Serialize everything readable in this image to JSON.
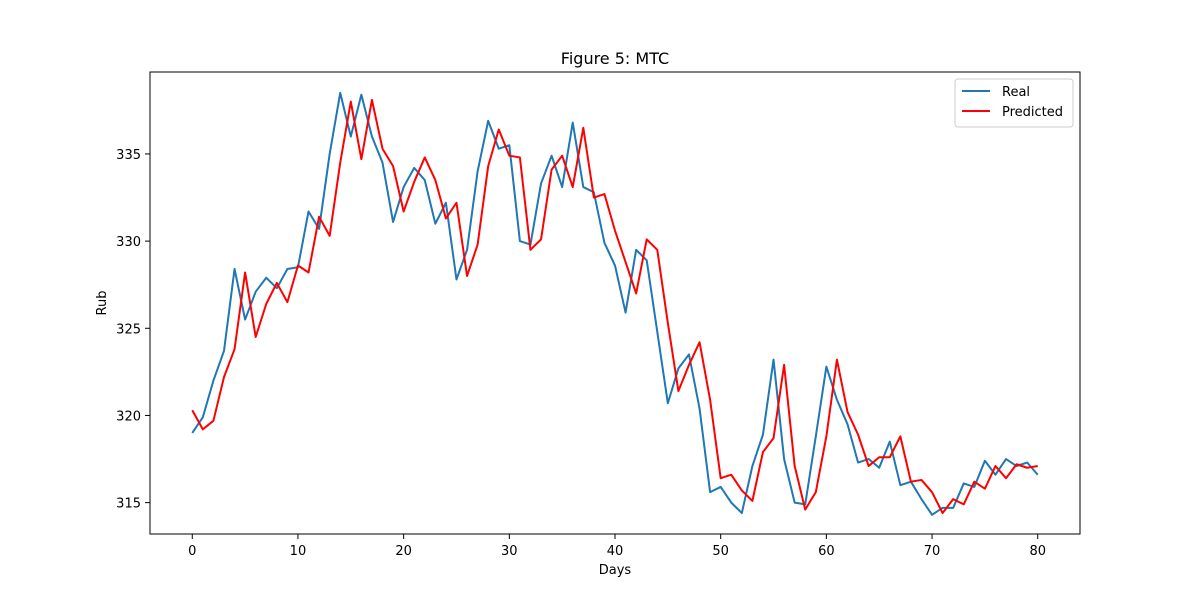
{
  "chart_data": {
    "type": "line",
    "title": "Figure 5: MTC",
    "xlabel": "Days",
    "ylabel": "Rub",
    "xlim": [
      -4,
      84
    ],
    "ylim": [
      313.2,
      339.7
    ],
    "xticks": [
      0,
      10,
      20,
      30,
      40,
      50,
      60,
      70,
      80
    ],
    "yticks": [
      315,
      320,
      325,
      330,
      335
    ],
    "grid": false,
    "legend_position": "upper right",
    "x": [
      0,
      1,
      2,
      3,
      4,
      5,
      6,
      7,
      8,
      9,
      10,
      11,
      12,
      13,
      14,
      15,
      16,
      17,
      18,
      19,
      20,
      21,
      22,
      23,
      24,
      25,
      26,
      27,
      28,
      29,
      30,
      31,
      32,
      33,
      34,
      35,
      36,
      37,
      38,
      39,
      40,
      41,
      42,
      43,
      44,
      45,
      46,
      47,
      48,
      49,
      50,
      51,
      52,
      53,
      54,
      55,
      56,
      57,
      58,
      59,
      60,
      61,
      62,
      63,
      64,
      65,
      66,
      67,
      68,
      69,
      70,
      71,
      72,
      73,
      74,
      75,
      76,
      77,
      78,
      79,
      80
    ],
    "series": [
      {
        "name": "Real",
        "color": "#1f77b4",
        "values": [
          319.0,
          319.9,
          322.0,
          323.7,
          328.4,
          325.5,
          327.1,
          327.9,
          327.3,
          328.4,
          328.5,
          331.7,
          330.7,
          335.0,
          338.5,
          336.0,
          338.4,
          336.0,
          334.5,
          331.1,
          333.1,
          334.2,
          333.5,
          331.0,
          332.2,
          327.8,
          329.5,
          334.0,
          336.9,
          335.3,
          335.5,
          330.0,
          329.8,
          333.3,
          334.9,
          333.1,
          336.8,
          333.1,
          332.8,
          329.9,
          328.6,
          325.9,
          329.5,
          328.9,
          324.8,
          320.7,
          322.7,
          323.5,
          320.4,
          315.6,
          315.9,
          315.0,
          314.4,
          317.1,
          318.9,
          323.2,
          317.5,
          315.0,
          314.9,
          318.8,
          322.8,
          320.9,
          319.5,
          317.3,
          317.5,
          317.0,
          318.5,
          316.0,
          316.2,
          315.2,
          314.3,
          314.7,
          314.7,
          316.1,
          315.9,
          317.4,
          316.6,
          317.5,
          317.1,
          317.3,
          316.6
        ]
      },
      {
        "name": "Predicted",
        "color": "#ff0000",
        "values": [
          320.3,
          319.2,
          319.7,
          322.2,
          323.8,
          328.2,
          324.5,
          326.4,
          327.6,
          326.5,
          328.6,
          328.2,
          331.4,
          330.3,
          334.5,
          338.0,
          334.7,
          338.1,
          335.3,
          334.3,
          331.7,
          333.4,
          334.8,
          333.5,
          331.3,
          332.2,
          328.0,
          329.8,
          334.3,
          336.4,
          334.9,
          334.8,
          329.5,
          330.1,
          334.1,
          334.9,
          333.1,
          336.5,
          332.5,
          332.7,
          330.6,
          328.8,
          327.0,
          330.1,
          329.5,
          325.3,
          321.4,
          322.9,
          324.2,
          320.9,
          316.4,
          316.6,
          315.7,
          315.1,
          317.9,
          318.7,
          322.9,
          317.1,
          314.6,
          315.6,
          318.8,
          323.2,
          320.2,
          318.9,
          317.1,
          317.6,
          317.6,
          318.8,
          316.2,
          316.3,
          315.6,
          314.4,
          315.2,
          314.9,
          316.2,
          315.8,
          317.1,
          316.4,
          317.2,
          317.0,
          317.1
        ]
      }
    ]
  }
}
